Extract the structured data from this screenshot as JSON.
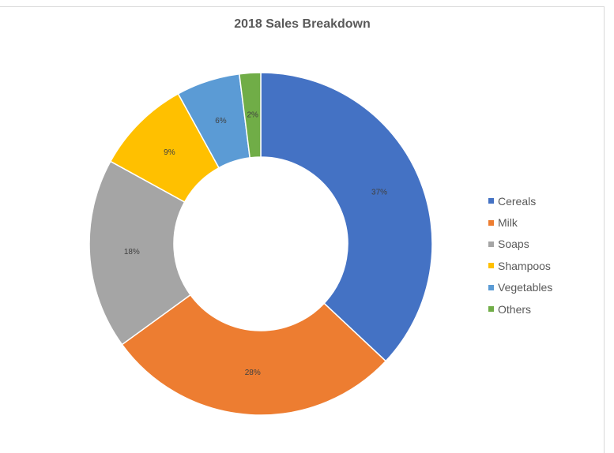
{
  "chart_data": {
    "type": "pie",
    "variant": "doughnut",
    "title": "2018 Sales Breakdown",
    "categories": [
      "Cereals",
      "Milk",
      "Soaps",
      "Shampoos",
      "Vegetables",
      "Others"
    ],
    "values": [
      37,
      28,
      18,
      9,
      6,
      2
    ],
    "value_labels": [
      "37%",
      "28%",
      "18%",
      "9%",
      "6%",
      "2%"
    ],
    "colors": [
      "#4472C4",
      "#ED7D31",
      "#A5A5A5",
      "#FFC000",
      "#5B9BD5",
      "#70AD47"
    ],
    "legend": "right"
  }
}
